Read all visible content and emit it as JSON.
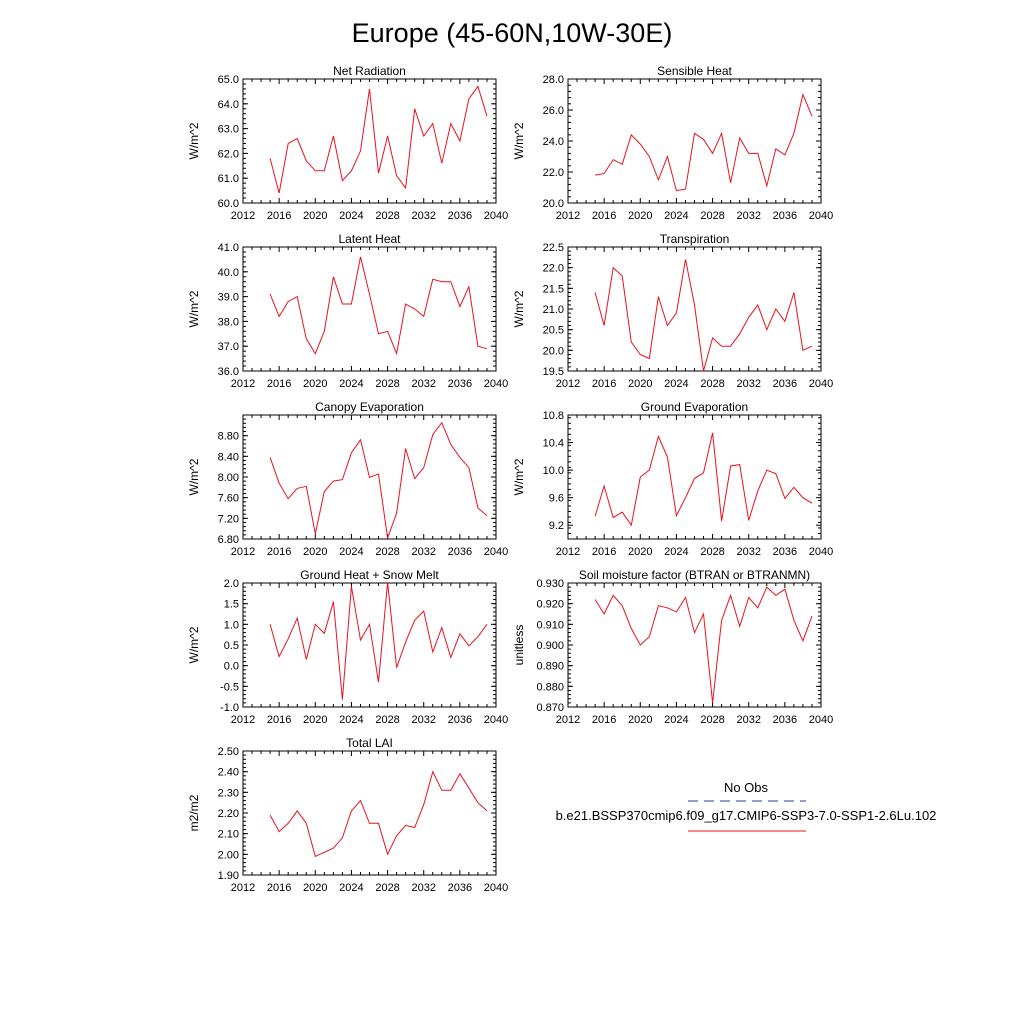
{
  "figure": {
    "title": "Europe (45-60N,10W-30E)"
  },
  "legend": {
    "obs_label": "No Obs",
    "obs_color": "#2b3aa0",
    "case_label": "b.e21.BSSP370cmip6.f09_g17.CMIP6-SSP3-7.0-SSP1-2.6Lu.102",
    "case_color": "#e8121e"
  },
  "chart_data": [
    {
      "type": "line",
      "title": "Net Radiation",
      "ylabel": "W/m^2",
      "xlim": [
        2012,
        2040
      ],
      "ylim": [
        60.0,
        65.0
      ],
      "xticks": [
        "2012",
        "2016",
        "2020",
        "2024",
        "2028",
        "2032",
        "2036",
        "2040"
      ],
      "yticks": [
        "60.0",
        "61.0",
        "62.0",
        "63.0",
        "64.0",
        "65.0"
      ],
      "series": [
        {
          "x": [
            2015,
            2016,
            2017,
            2018,
            2019,
            2020,
            2021,
            2022,
            2023,
            2024,
            2025,
            2026,
            2027,
            2028,
            2029,
            2030,
            2031,
            2032,
            2033,
            2034,
            2035,
            2036,
            2037,
            2038,
            2039
          ],
          "values": [
            61.8,
            60.4,
            62.4,
            62.6,
            61.7,
            61.3,
            61.3,
            62.7,
            60.9,
            61.3,
            62.1,
            64.6,
            61.2,
            62.7,
            61.1,
            60.6,
            63.8,
            62.7,
            63.2,
            61.6,
            63.2,
            62.5,
            64.2,
            64.7,
            63.5
          ]
        }
      ]
    },
    {
      "type": "line",
      "title": "Sensible Heat",
      "ylabel": "W/m^2",
      "xlim": [
        2012,
        2040
      ],
      "ylim": [
        20.0,
        28.0
      ],
      "xticks": [
        "2012",
        "2016",
        "2020",
        "2024",
        "2028",
        "2032",
        "2036",
        "2040"
      ],
      "yticks": [
        "20.0",
        "22.0",
        "24.0",
        "26.0",
        "28.0"
      ],
      "series": [
        {
          "x": [
            2015,
            2016,
            2017,
            2018,
            2019,
            2020,
            2021,
            2022,
            2023,
            2024,
            2025,
            2026,
            2027,
            2028,
            2029,
            2030,
            2031,
            2032,
            2033,
            2034,
            2035,
            2036,
            2037,
            2038,
            2039
          ],
          "values": [
            21.8,
            21.9,
            22.8,
            22.5,
            24.4,
            23.8,
            23.0,
            21.5,
            23.0,
            20.8,
            20.9,
            24.5,
            24.1,
            23.2,
            24.5,
            21.3,
            24.2,
            23.2,
            23.2,
            21.1,
            23.5,
            23.1,
            24.5,
            27.0,
            25.6
          ]
        }
      ]
    },
    {
      "type": "line",
      "title": "Latent Heat",
      "ylabel": "W/m^2",
      "xlim": [
        2012,
        2040
      ],
      "ylim": [
        36.0,
        41.0
      ],
      "xticks": [
        "2012",
        "2016",
        "2020",
        "2024",
        "2028",
        "2032",
        "2036",
        "2040"
      ],
      "yticks": [
        "36.0",
        "37.0",
        "38.0",
        "39.0",
        "40.0",
        "41.0"
      ],
      "series": [
        {
          "x": [
            2015,
            2016,
            2017,
            2018,
            2019,
            2020,
            2021,
            2022,
            2023,
            2024,
            2025,
            2026,
            2027,
            2028,
            2029,
            2030,
            2031,
            2032,
            2033,
            2034,
            2035,
            2036,
            2037,
            2038,
            2039
          ],
          "values": [
            39.1,
            38.2,
            38.8,
            39.0,
            37.3,
            36.7,
            37.6,
            39.8,
            38.7,
            38.7,
            40.6,
            39.1,
            37.5,
            37.6,
            36.7,
            38.7,
            38.5,
            38.2,
            39.7,
            39.6,
            39.6,
            38.6,
            39.4,
            37.0,
            36.9
          ]
        }
      ]
    },
    {
      "type": "line",
      "title": "Transpiration",
      "ylabel": "W/m^2",
      "xlim": [
        2012,
        2040
      ],
      "ylim": [
        19.5,
        22.5
      ],
      "xticks": [
        "2012",
        "2016",
        "2020",
        "2024",
        "2028",
        "2032",
        "2036",
        "2040"
      ],
      "yticks": [
        "19.5",
        "20.0",
        "20.5",
        "21.0",
        "21.5",
        "22.0",
        "22.5"
      ],
      "series": [
        {
          "x": [
            2015,
            2016,
            2017,
            2018,
            2019,
            2020,
            2021,
            2022,
            2023,
            2024,
            2025,
            2026,
            2027,
            2028,
            2029,
            2030,
            2031,
            2032,
            2033,
            2034,
            2035,
            2036,
            2037,
            2038,
            2039
          ],
          "values": [
            21.4,
            20.6,
            22.0,
            21.8,
            20.2,
            19.9,
            19.8,
            21.3,
            20.6,
            20.9,
            22.2,
            21.1,
            19.5,
            20.3,
            20.1,
            20.1,
            20.4,
            20.8,
            21.1,
            20.5,
            21.0,
            20.7,
            21.4,
            20.0,
            20.1
          ]
        }
      ]
    },
    {
      "type": "line",
      "title": "Canopy Evaporation",
      "ylabel": "W/m^2",
      "xlim": [
        2012,
        2040
      ],
      "ylim": [
        6.8,
        9.2
      ],
      "xticks": [
        "2012",
        "2016",
        "2020",
        "2024",
        "2028",
        "2032",
        "2036",
        "2040"
      ],
      "yticks": [
        "6.80",
        "7.20",
        "7.60",
        "8.00",
        "8.40",
        "8.80"
      ],
      "series": [
        {
          "x": [
            2015,
            2016,
            2017,
            2018,
            2019,
            2020,
            2021,
            2022,
            2023,
            2024,
            2025,
            2026,
            2027,
            2028,
            2029,
            2030,
            2031,
            2032,
            2033,
            2034,
            2035,
            2036,
            2037,
            2038,
            2039
          ],
          "values": [
            8.38,
            7.88,
            7.58,
            7.78,
            7.82,
            6.9,
            7.72,
            7.92,
            7.95,
            8.47,
            8.72,
            7.99,
            8.06,
            6.82,
            7.3,
            8.55,
            7.97,
            8.18,
            8.82,
            9.05,
            8.63,
            8.38,
            8.18,
            7.4,
            7.25
          ]
        }
      ]
    },
    {
      "type": "line",
      "title": "Ground Evaporation",
      "ylabel": "W/m^2",
      "xlim": [
        2012,
        2040
      ],
      "ylim": [
        9.0,
        10.8
      ],
      "xticks": [
        "2012",
        "2016",
        "2020",
        "2024",
        "2028",
        "2032",
        "2036",
        "2040"
      ],
      "yticks": [
        "9.2",
        "9.6",
        "10.0",
        "10.4",
        "10.8"
      ],
      "series": [
        {
          "x": [
            2015,
            2016,
            2017,
            2018,
            2019,
            2020,
            2021,
            2022,
            2023,
            2024,
            2025,
            2026,
            2027,
            2028,
            2029,
            2030,
            2031,
            2032,
            2033,
            2034,
            2035,
            2036,
            2037,
            2038,
            2039
          ],
          "values": [
            9.33,
            9.77,
            9.31,
            9.39,
            9.2,
            9.9,
            10.0,
            10.49,
            10.19,
            9.34,
            9.6,
            9.88,
            9.96,
            10.54,
            9.26,
            10.06,
            10.08,
            9.27,
            9.7,
            10.0,
            9.95,
            9.59,
            9.75,
            9.6,
            9.52
          ]
        }
      ]
    },
    {
      "type": "line",
      "title": "Ground Heat + Snow Melt",
      "ylabel": "W/m^2",
      "xlim": [
        2012,
        2040
      ],
      "ylim": [
        -1.0,
        2.0
      ],
      "xticks": [
        "2012",
        "2016",
        "2020",
        "2024",
        "2028",
        "2032",
        "2036",
        "2040"
      ],
      "yticks": [
        "-1.0",
        "-0.5",
        "0.0",
        "0.5",
        "1.0",
        "1.5",
        "2.0"
      ],
      "series": [
        {
          "x": [
            2015,
            2016,
            2017,
            2018,
            2019,
            2020,
            2021,
            2022,
            2023,
            2024,
            2025,
            2026,
            2027,
            2028,
            2029,
            2030,
            2031,
            2032,
            2033,
            2034,
            2035,
            2036,
            2037,
            2038,
            2039
          ],
          "values": [
            1.0,
            0.22,
            0.65,
            1.15,
            0.15,
            1.0,
            0.78,
            1.55,
            -0.82,
            1.92,
            0.62,
            1.0,
            -0.4,
            2.02,
            -0.05,
            0.57,
            1.1,
            1.32,
            0.33,
            0.92,
            0.2,
            0.77,
            0.48,
            0.7,
            1.0
          ]
        }
      ]
    },
    {
      "type": "line",
      "title": "Soil moisture factor (BTRAN or BTRANMN)",
      "ylabel": "unitless",
      "xlim": [
        2012,
        2040
      ],
      "ylim": [
        0.87,
        0.93
      ],
      "xticks": [
        "2012",
        "2016",
        "2020",
        "2024",
        "2028",
        "2032",
        "2036",
        "2040"
      ],
      "yticks": [
        "0.870",
        "0.880",
        "0.890",
        "0.900",
        "0.910",
        "0.920",
        "0.930"
      ],
      "series": [
        {
          "x": [
            2015,
            2016,
            2017,
            2018,
            2019,
            2020,
            2021,
            2022,
            2023,
            2024,
            2025,
            2026,
            2027,
            2028,
            2029,
            2030,
            2031,
            2032,
            2033,
            2034,
            2035,
            2036,
            2037,
            2038,
            2039
          ],
          "values": [
            0.922,
            0.915,
            0.924,
            0.919,
            0.908,
            0.9,
            0.904,
            0.919,
            0.918,
            0.916,
            0.923,
            0.906,
            0.915,
            0.872,
            0.912,
            0.924,
            0.909,
            0.923,
            0.918,
            0.928,
            0.924,
            0.927,
            0.912,
            0.902,
            0.914
          ]
        }
      ]
    },
    {
      "type": "line",
      "title": "Total LAI",
      "ylabel": "m2/m2",
      "xlim": [
        2012,
        2040
      ],
      "ylim": [
        1.9,
        2.5
      ],
      "xticks": [
        "2012",
        "2016",
        "2020",
        "2024",
        "2028",
        "2032",
        "2036",
        "2040"
      ],
      "yticks": [
        "1.90",
        "2.00",
        "2.10",
        "2.20",
        "2.30",
        "2.40",
        "2.50"
      ],
      "series": [
        {
          "x": [
            2015,
            2016,
            2017,
            2018,
            2019,
            2020,
            2021,
            2022,
            2023,
            2024,
            2025,
            2026,
            2027,
            2028,
            2029,
            2030,
            2031,
            2032,
            2033,
            2034,
            2035,
            2036,
            2037,
            2038,
            2039
          ],
          "values": [
            2.19,
            2.11,
            2.15,
            2.21,
            2.15,
            1.99,
            2.01,
            2.03,
            2.08,
            2.21,
            2.26,
            2.15,
            2.15,
            2.0,
            2.09,
            2.14,
            2.13,
            2.24,
            2.4,
            2.31,
            2.31,
            2.39,
            2.32,
            2.25,
            2.21
          ]
        }
      ]
    }
  ]
}
